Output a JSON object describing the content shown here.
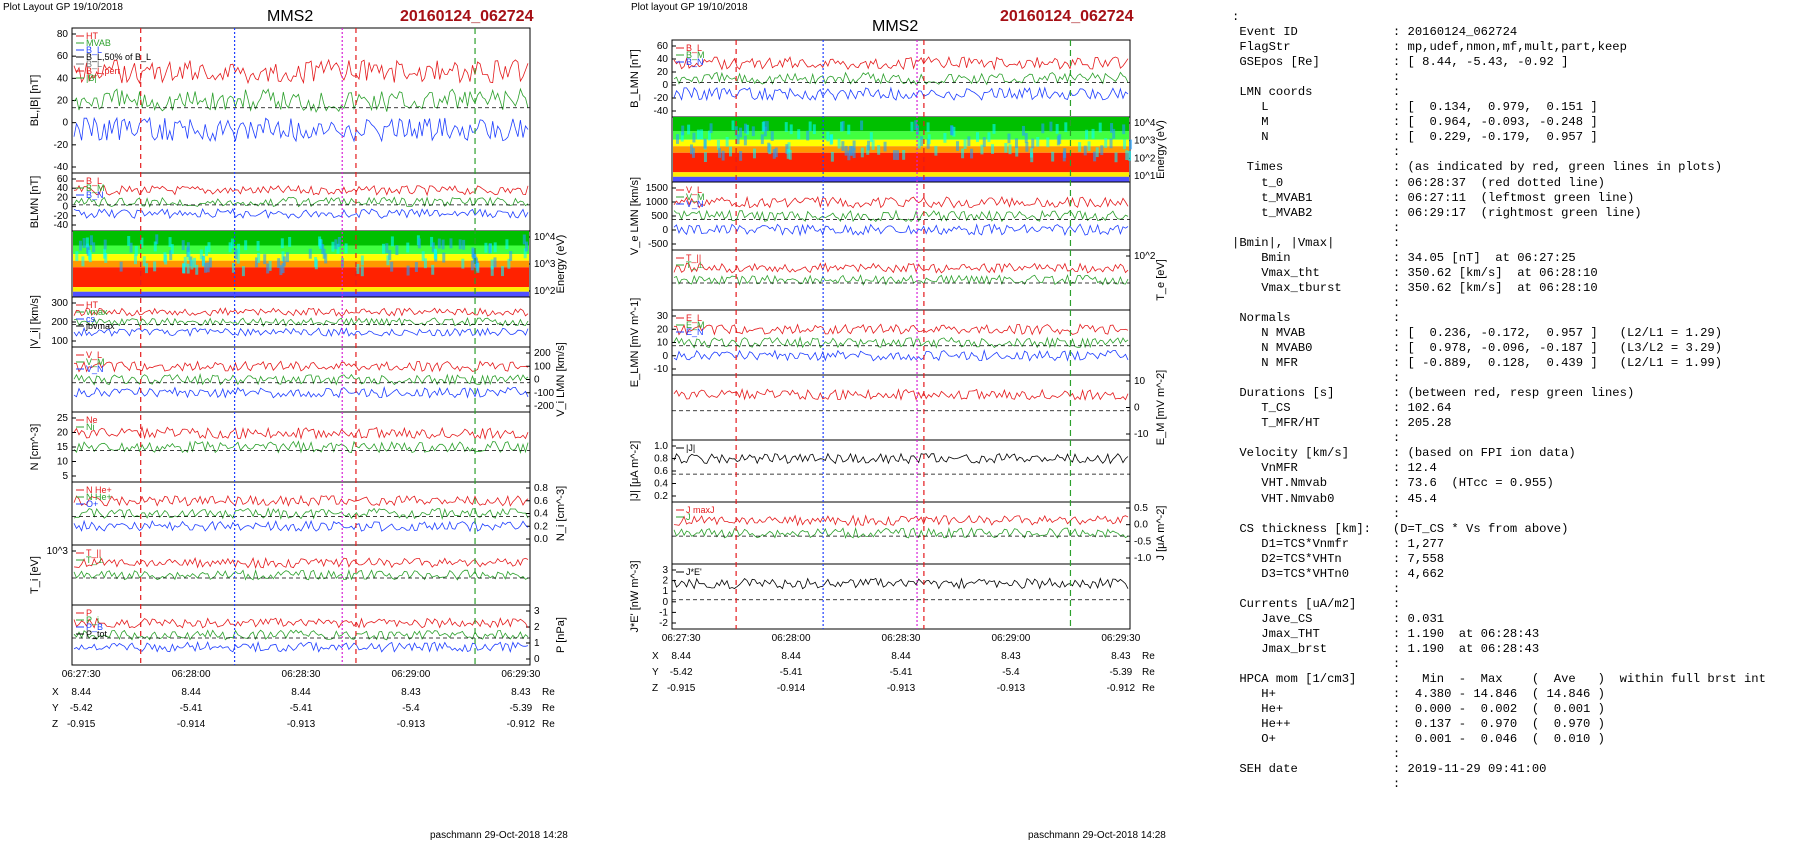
{
  "left": {
    "header": "Plot Layout GP 19/10/2018",
    "title": "MMS2",
    "event": "20160124_062724",
    "footer": "paschmann 29-Oct-2018 14:28",
    "x_ticks": [
      "06:27:30",
      "06:28:00",
      "06:28:30",
      "06:29:00",
      "06:29:30"
    ],
    "pos_rows": [
      {
        "label": "X",
        "values": [
          "8.44",
          "8.44",
          "8.44",
          "8.43",
          "8.43"
        ],
        "unit": "Re"
      },
      {
        "label": "Y",
        "values": [
          "-5.42",
          "-5.41",
          "-5.41",
          "-5.4",
          "-5.39"
        ],
        "unit": "Re"
      },
      {
        "label": "Z",
        "values": [
          "-0.915",
          "-0.914",
          "-0.913",
          "-0.913",
          "-0.912"
        ],
        "unit": "Re"
      }
    ],
    "panels": [
      {
        "ylabel": "B<sub>L</sub>,|B| [nT]",
        "ticks": [
          "80",
          "60",
          "40",
          "20",
          "0",
          "-20",
          "-40"
        ],
        "side": "left",
        "legend": [
          "HT",
          "MVAB",
          "B_L",
          "B_L,50% of B_L",
          "B_L",
          "B_L,pert",
          "|B|"
        ]
      },
      {
        "ylabel": "B<sub>LMN</sub> [nT]",
        "ticks": [
          "60",
          "40",
          "20",
          "0",
          "-20",
          "-40"
        ],
        "side": "left",
        "legend": [
          "B_L",
          "B_M",
          "B_N"
        ]
      },
      {
        "ylabel": "Energy (eV)",
        "ticks": [
          "10^4",
          "10^3",
          "10^2"
        ],
        "side": "right",
        "legend": []
      },
      {
        "ylabel": "|V_i| [km/s]",
        "ticks": [
          "300",
          "200",
          "100"
        ],
        "side": "left",
        "legend": [
          "HT",
          "vmax",
          "cs",
          "jbvmax"
        ]
      },
      {
        "ylabel": "V_i LMN [km/s]",
        "ticks": [
          "200",
          "100",
          "0",
          "-100",
          "-200"
        ],
        "side": "right",
        "legend": [
          "V_L",
          "V_M",
          "V_N"
        ]
      },
      {
        "ylabel": "N [cm^-3]",
        "ticks": [
          "25",
          "20",
          "15",
          "10",
          "5"
        ],
        "side": "left",
        "legend": [
          "Ne",
          "Ni"
        ]
      },
      {
        "ylabel": "N_i [cm^-3]",
        "ticks": [
          "0.8",
          "0.6",
          "0.4",
          "0.2",
          "0.0"
        ],
        "side": "right",
        "legend": [
          "N He+",
          "N He+",
          "O+"
        ]
      },
      {
        "ylabel": "T_i [eV]",
        "ticks": [
          "10^3"
        ],
        "side": "left",
        "legend": [
          "T_||",
          "T_⊥"
        ]
      },
      {
        "ylabel": "P [nPa]",
        "ticks": [
          "3",
          "2",
          "1",
          "0"
        ],
        "side": "right",
        "legend": [
          "P",
          "P_i",
          "P_B",
          "P_tot"
        ]
      }
    ]
  },
  "middle": {
    "header": "Plot layout GP 19/10/2018",
    "title": "MMS2",
    "event": "20160124_062724",
    "footer": "paschmann 29-Oct-2018 14:28",
    "x_ticks": [
      "06:27:30",
      "06:28:00",
      "06:28:30",
      "06:29:00",
      "06:29:30"
    ],
    "pos_rows": [
      {
        "label": "X",
        "values": [
          "8.44",
          "8.44",
          "8.44",
          "8.43",
          "8.43"
        ],
        "unit": "Re"
      },
      {
        "label": "Y",
        "values": [
          "-5.42",
          "-5.41",
          "-5.41",
          "-5.4",
          "-5.39"
        ],
        "unit": "Re"
      },
      {
        "label": "Z",
        "values": [
          "-0.915",
          "-0.914",
          "-0.913",
          "-0.913",
          "-0.912"
        ],
        "unit": "Re"
      }
    ],
    "panels": [
      {
        "ylabel": "B_LMN [nT]",
        "ticks": [
          "60",
          "40",
          "20",
          "0",
          "-20",
          "-40"
        ],
        "side": "left",
        "legend": [
          "B_L",
          "B_M",
          "B_N"
        ]
      },
      {
        "ylabel": "Energy (eV)",
        "ticks": [
          "10^4",
          "10^3",
          "10^2",
          "10^1"
        ],
        "side": "right",
        "legend": []
      },
      {
        "ylabel": "V_e LMN [km/s]",
        "ticks": [
          "1500",
          "1000",
          "500",
          "0",
          "-500"
        ],
        "side": "left",
        "legend": [
          "V_L",
          "V_M",
          "V_N"
        ]
      },
      {
        "ylabel": "T_e [eV]",
        "ticks": [
          "10^2"
        ],
        "side": "right",
        "legend": [
          "T_||",
          "T_⊥"
        ]
      },
      {
        "ylabel": "E_LMN [mV m^-1]",
        "ticks": [
          "30",
          "20",
          "10",
          "0",
          "-10"
        ],
        "side": "left",
        "legend": [
          "E_L",
          "E_M",
          "E_N"
        ]
      },
      {
        "ylabel": "E_M [mV m^-2]",
        "ticks": [
          "10",
          "0",
          "-10"
        ],
        "side": "right",
        "legend": []
      },
      {
        "ylabel": "|J| [μA m^-2]",
        "ticks": [
          "1.0",
          "0.8",
          "0.6",
          "0.4",
          "0.2"
        ],
        "side": "left",
        "legend": [
          "|J|"
        ]
      },
      {
        "ylabel": "J [μA m^-2]",
        "ticks": [
          "0.5",
          "0.0",
          "-0.5",
          "-1.0"
        ],
        "side": "right",
        "legend": [
          "J maxJ",
          "J"
        ]
      },
      {
        "ylabel": "J*E' [nW m^-3]",
        "ticks": [
          "3",
          "2",
          "1",
          "0",
          "-1",
          "-2"
        ],
        "side": "left",
        "legend": [
          "J*E'"
        ]
      }
    ]
  },
  "info_lines": [
    ":",
    " Event ID             : 20160124_062724",
    " FlagStr              : mp,udef,nmon,mf,mult,part,keep",
    " GSEpos [Re]          : [ 8.44, -5.43, -0.92 ]",
    "                      :",
    " LMN coords           :",
    "    L                 : [  0.134,  0.979,  0.151 ]",
    "    M                 : [  0.964, -0.093, -0.248 ]",
    "    N                 : [  0.229, -0.179,  0.957 ]",
    "                      :",
    "  Times               : (as indicated by red, green lines in plots)",
    "    t_0               : 06:28:37  (red dotted line)",
    "    t_MVAB1           : 06:27:11  (leftmost green line)",
    "    t_MVAB2           : 06:29:17  (rightmost green line)",
    "                      :",
    "|Bmin|, |Vmax|        :",
    "    Bmin              : 34.05 [nT]  at 06:27:25",
    "    Vmax_tht          : 350.62 [km/s]  at 06:28:10",
    "    Vmax_tburst       : 350.62 [km/s]  at 06:28:10",
    "                      :",
    " Normals              :",
    "    N MVAB            : [  0.236, -0.172,  0.957 ]   (L2/L1 = 1.29)",
    "    N MVAB0           : [  0.978, -0.096, -0.187 ]   (L3/L2 = 3.29)",
    "    N MFR             : [ -0.889,  0.128,  0.439 ]   (L2/L1 = 1.99)",
    "                      :",
    " Durations [s]        : (between red, resp green lines)",
    "    T_CS              : 102.64",
    "    T_MFR/HT          : 205.28",
    "                      :",
    " Velocity [km/s]      : (based on FPI ion data)",
    "    VnMFR             : 12.4",
    "    VHT.Nmvab         : 73.6  (HTcc = 0.955)",
    "    VHT.Nmvab0        : 45.4",
    "                      :",
    " CS thickness [km]:   (D=T_CS * Vs from above)",
    "    D1=TCS*Vnmfr      : 1,277",
    "    D2=TCS*VHTn       : 7,558",
    "    D3=TCS*VHTn0      : 4,662",
    "                      :",
    " Currents [uA/m2]     :",
    "    Jave_CS           : 0.031",
    "    Jmax_THT          : 1.190  at 06:28:43",
    "    Jmax_brst         : 1.190  at 06:28:43",
    "                      :",
    " HPCA mom [1/cm3]     :   Min  -  Max    (  Ave   )  within full brst int",
    "    H+                :  4.380 - 14.846  ( 14.846 )",
    "    He+               :  0.000 -  0.002  (  0.001 )",
    "    He++              :  0.137 -  0.970  (  0.970 )",
    "    O+                :  0.001 -  0.046  (  0.010 )",
    "                      :",
    " SEH date             : 2019-11-29 09:41:00",
    "                      :"
  ],
  "colors": {
    "event": "#a50f15",
    "red": "#e41a1c",
    "green": "#2ca02c",
    "blue": "#1f3fff",
    "magenta": "#d620d6",
    "gray": "#777777"
  }
}
